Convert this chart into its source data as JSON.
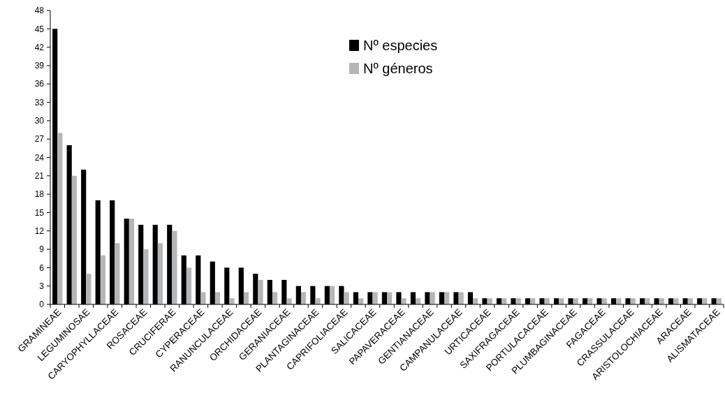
{
  "chart_data": {
    "type": "bar",
    "categories": [
      "GRAMINEAE",
      null,
      "LEGUMINOSAE",
      null,
      "CARYOPHYLLACEAE",
      null,
      "ROSACEAE",
      null,
      "CRUCIFERAE",
      null,
      "CYPERACEAE",
      null,
      "RANUNCULACEAE",
      null,
      "ORCHIDACEAE",
      null,
      "GERANIACEAE",
      null,
      "PLANTAGINACEAE",
      null,
      "CAPRIFOLIACEAE",
      null,
      "SALICACEAE",
      null,
      "PAPAVERACEAE",
      null,
      "GENTIANACEAE",
      null,
      "CAMPANULACEAE",
      null,
      "URTICACEAE",
      null,
      "SAXIFRAGACEAE",
      null,
      "PORTULACACEAE",
      null,
      "PLUMBAGINACEAE",
      null,
      "FAGACEAE",
      null,
      "CRASSULACEAE",
      null,
      "ARISTOLOCHIACEAE",
      null,
      "ARACEAE",
      null,
      "ALISMATACEAE"
    ],
    "series": [
      {
        "name": "Nº especies",
        "color": "#000000",
        "values": [
          45,
          26,
          22,
          17,
          17,
          14,
          13,
          13,
          13,
          8,
          8,
          7,
          6,
          6,
          5,
          4,
          4,
          3,
          3,
          3,
          3,
          2,
          2,
          2,
          2,
          2,
          2,
          2,
          2,
          2,
          1,
          1,
          1,
          1,
          1,
          1,
          1,
          1,
          1,
          1,
          1,
          1,
          1,
          1,
          1,
          1,
          1
        ]
      },
      {
        "name": "Nº géneros",
        "color": "#b4b6b8",
        "values": [
          28,
          21,
          5,
          8,
          10,
          14,
          9,
          10,
          12,
          6,
          2,
          2,
          1,
          2,
          4,
          2,
          1,
          2,
          1,
          3,
          2,
          1,
          2,
          2,
          1,
          1,
          2,
          2,
          2,
          1,
          1,
          1,
          1,
          1,
          1,
          1,
          1,
          1,
          1,
          1,
          1,
          1,
          1,
          1,
          1,
          1,
          1
        ]
      }
    ],
    "ylim": [
      0,
      48
    ],
    "yticks": [
      0,
      3,
      6,
      9,
      12,
      15,
      18,
      21,
      24,
      27,
      30,
      33,
      36,
      39,
      42,
      45,
      48
    ],
    "grid": false,
    "legend": "top right"
  }
}
